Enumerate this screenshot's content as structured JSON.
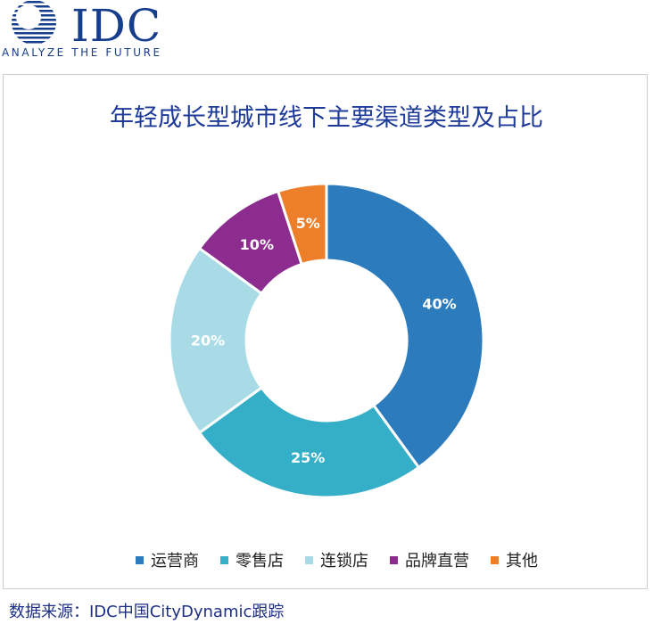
{
  "logo": {
    "brand": "IDC",
    "tagline": "ANALYZE THE FUTURE"
  },
  "chart_data": {
    "type": "pie",
    "title": "年轻成长型城市线下主要渠道类型及占比",
    "categories": [
      "运营商",
      "零售店",
      "连锁店",
      "品牌直营",
      "其他"
    ],
    "values": [
      40,
      25,
      20,
      10,
      5
    ],
    "labels": [
      "40%",
      "25%",
      "20%",
      "10%",
      "5%"
    ],
    "colors": [
      "#2b7bbd",
      "#35afc7",
      "#a8dbe6",
      "#8d2c8f",
      "#ee7f2a"
    ],
    "legend_position": "bottom"
  },
  "legend": {
    "items": [
      "运营商",
      "零售店",
      "连锁店",
      "品牌直营",
      "其他"
    ]
  },
  "source": "数据来源：IDC中国CityDynamic跟踪"
}
